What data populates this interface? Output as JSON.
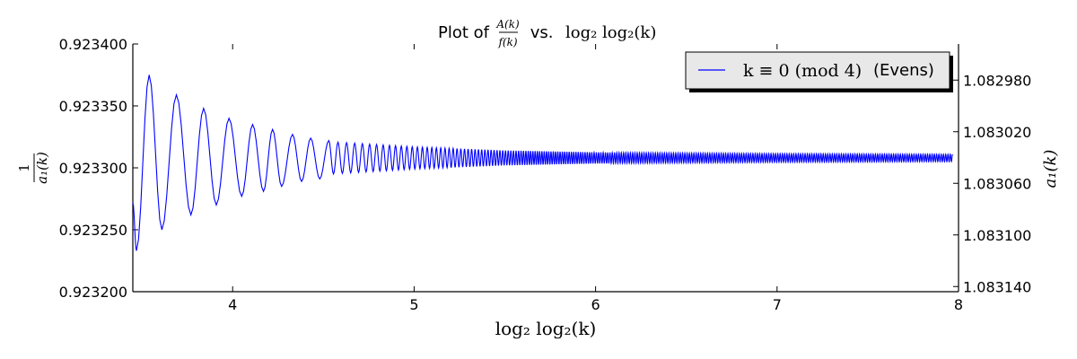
{
  "chart_data": {
    "type": "line",
    "title": {
      "prefix": "Plot of ",
      "numerator": "A(k)",
      "denominator": "f(k)",
      "middle": " vs. ",
      "expr": "log₂ log₂(k)"
    },
    "xlabel": "log₂ log₂(k)",
    "ylabel_left": {
      "numerator": "1",
      "denominator": "a₁(k)"
    },
    "ylabel_right": "a₁(k)",
    "xlim": [
      3.45,
      8.0
    ],
    "ylim_left": [
      0.9232,
      0.9234
    ],
    "ylim_right_top": 1.082952,
    "x_ticks": [
      4,
      5,
      6,
      7,
      8
    ],
    "x_tick_labels": [
      "4",
      "5",
      "6",
      "7",
      "8"
    ],
    "y_left_ticks": [
      0.9232,
      0.92325,
      0.9233,
      0.92335,
      0.9234
    ],
    "y_left_tick_labels": [
      "0.923200",
      "0.923250",
      "0.923300",
      "0.923350",
      "0.923400"
    ],
    "y_right_ticks": [
      1.08298,
      1.08302,
      1.08306,
      1.0831,
      1.08314
    ],
    "y_right_tick_labels": [
      "1.082980",
      "1.083020",
      "1.083060",
      "1.083100",
      "1.083140"
    ],
    "grid": false,
    "legend": {
      "position": "top-right",
      "label_math": "k ≡ 0 (mod 4)",
      "label_text": "(Evens)"
    },
    "series": [
      {
        "name": "k ≡ 0 (mod 4) (Evens)",
        "color": "#0000ff",
        "baseline": 0.923308,
        "x_start": 3.45,
        "x_end": 7.97,
        "peaks": [
          {
            "x": 3.47,
            "y": 0.923233
          },
          {
            "x": 3.54,
            "y": 0.923375
          },
          {
            "x": 3.61,
            "y": 0.92325
          },
          {
            "x": 3.69,
            "y": 0.923359
          },
          {
            "x": 3.77,
            "y": 0.923262
          },
          {
            "x": 3.84,
            "y": 0.923348
          },
          {
            "x": 3.91,
            "y": 0.92327
          },
          {
            "x": 3.98,
            "y": 0.92334
          },
          {
            "x": 4.05,
            "y": 0.923277
          },
          {
            "x": 4.11,
            "y": 0.923335
          },
          {
            "x": 4.17,
            "y": 0.923281
          },
          {
            "x": 4.22,
            "y": 0.923331
          },
          {
            "x": 4.27,
            "y": 0.923285
          },
          {
            "x": 4.33,
            "y": 0.923327
          },
          {
            "x": 4.38,
            "y": 0.923289
          },
          {
            "x": 4.43,
            "y": 0.923324
          },
          {
            "x": 4.48,
            "y": 0.923291
          },
          {
            "x": 4.53,
            "y": 0.923322
          }
        ],
        "tail_period": 0.05,
        "tail_amplitude_at": [
          {
            "x": 4.55,
            "a": 1.3e-05
          },
          {
            "x": 5.0,
            "a": 9e-06
          },
          {
            "x": 5.5,
            "a": 6e-06
          },
          {
            "x": 6.0,
            "a": 4.5e-06
          },
          {
            "x": 7.0,
            "a": 3.5e-06
          },
          {
            "x": 7.97,
            "a": 3e-06
          }
        ]
      }
    ]
  }
}
